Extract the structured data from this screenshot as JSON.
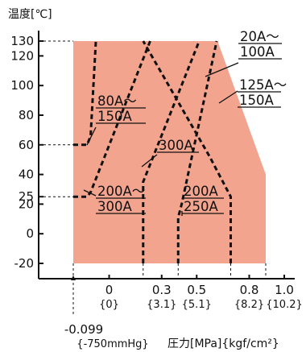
{
  "chart_data": {
    "type": "area",
    "ylabel": "温度[℃]",
    "xlabel": "圧力[MPa]{kgf/cm²}",
    "ylim": [
      -20,
      130
    ],
    "xlim": [
      -0.099,
      1.0
    ],
    "y_ticks": [
      -20,
      0,
      20,
      25,
      40,
      60,
      80,
      100,
      120,
      130
    ],
    "x_ticks": [
      {
        "value": 0,
        "label": "0",
        "sub": "{0}"
      },
      {
        "value": 0.3,
        "label": "0.3",
        "sub": "{3.1}"
      },
      {
        "value": 0.5,
        "label": "0.5",
        "sub": "{5.1}"
      },
      {
        "value": 0.8,
        "label": "0.8",
        "sub": "{8.2}"
      },
      {
        "value": 1.0,
        "label": "1.0",
        "sub": "{10.2}"
      }
    ],
    "x_low_tick": {
      "value": -0.099,
      "label": "-0.099",
      "sub": "{-750mmHg}"
    },
    "region": {
      "color": "#f3a48e",
      "points": [
        [
          -0.099,
          -20
        ],
        [
          -0.099,
          130
        ],
        [
          0.725,
          130
        ],
        [
          1.0,
          40
        ],
        [
          1.0,
          -20
        ]
      ]
    },
    "boundaries": [
      {
        "label_lines": [
          "80A～",
          "150A"
        ],
        "points": [
          [
            -0.099,
            60
          ],
          [
            -0.02,
            60
          ],
          [
            0,
            66
          ],
          [
            0.03,
            130
          ]
        ]
      },
      {
        "label_lines": [
          "200A～",
          "300A"
        ],
        "points": [
          [
            -0.099,
            25
          ],
          [
            -0.02,
            25
          ],
          [
            0,
            28
          ],
          [
            0.34,
            130
          ]
        ]
      },
      {
        "label_lines": [
          "300A"
        ],
        "points": [
          [
            0.3,
            -20
          ],
          [
            0.3,
            35
          ],
          [
            0.62,
            130
          ]
        ]
      },
      {
        "label_lines": [
          "200A",
          "250A"
        ],
        "points": [
          [
            0.5,
            -20
          ],
          [
            0.5,
            11
          ],
          [
            0.52,
            20
          ],
          [
            0.72,
            130
          ]
        ]
      },
      {
        "label_lines": [
          "125A～",
          "150A"
        ],
        "points": [
          [
            0.8,
            -20
          ],
          [
            0.8,
            25
          ],
          [
            0.68,
            52
          ],
          [
            0.3,
            130
          ]
        ]
      }
    ],
    "outer_label": {
      "label_lines": [
        "20A～",
        "100A"
      ]
    },
    "grid": false
  }
}
